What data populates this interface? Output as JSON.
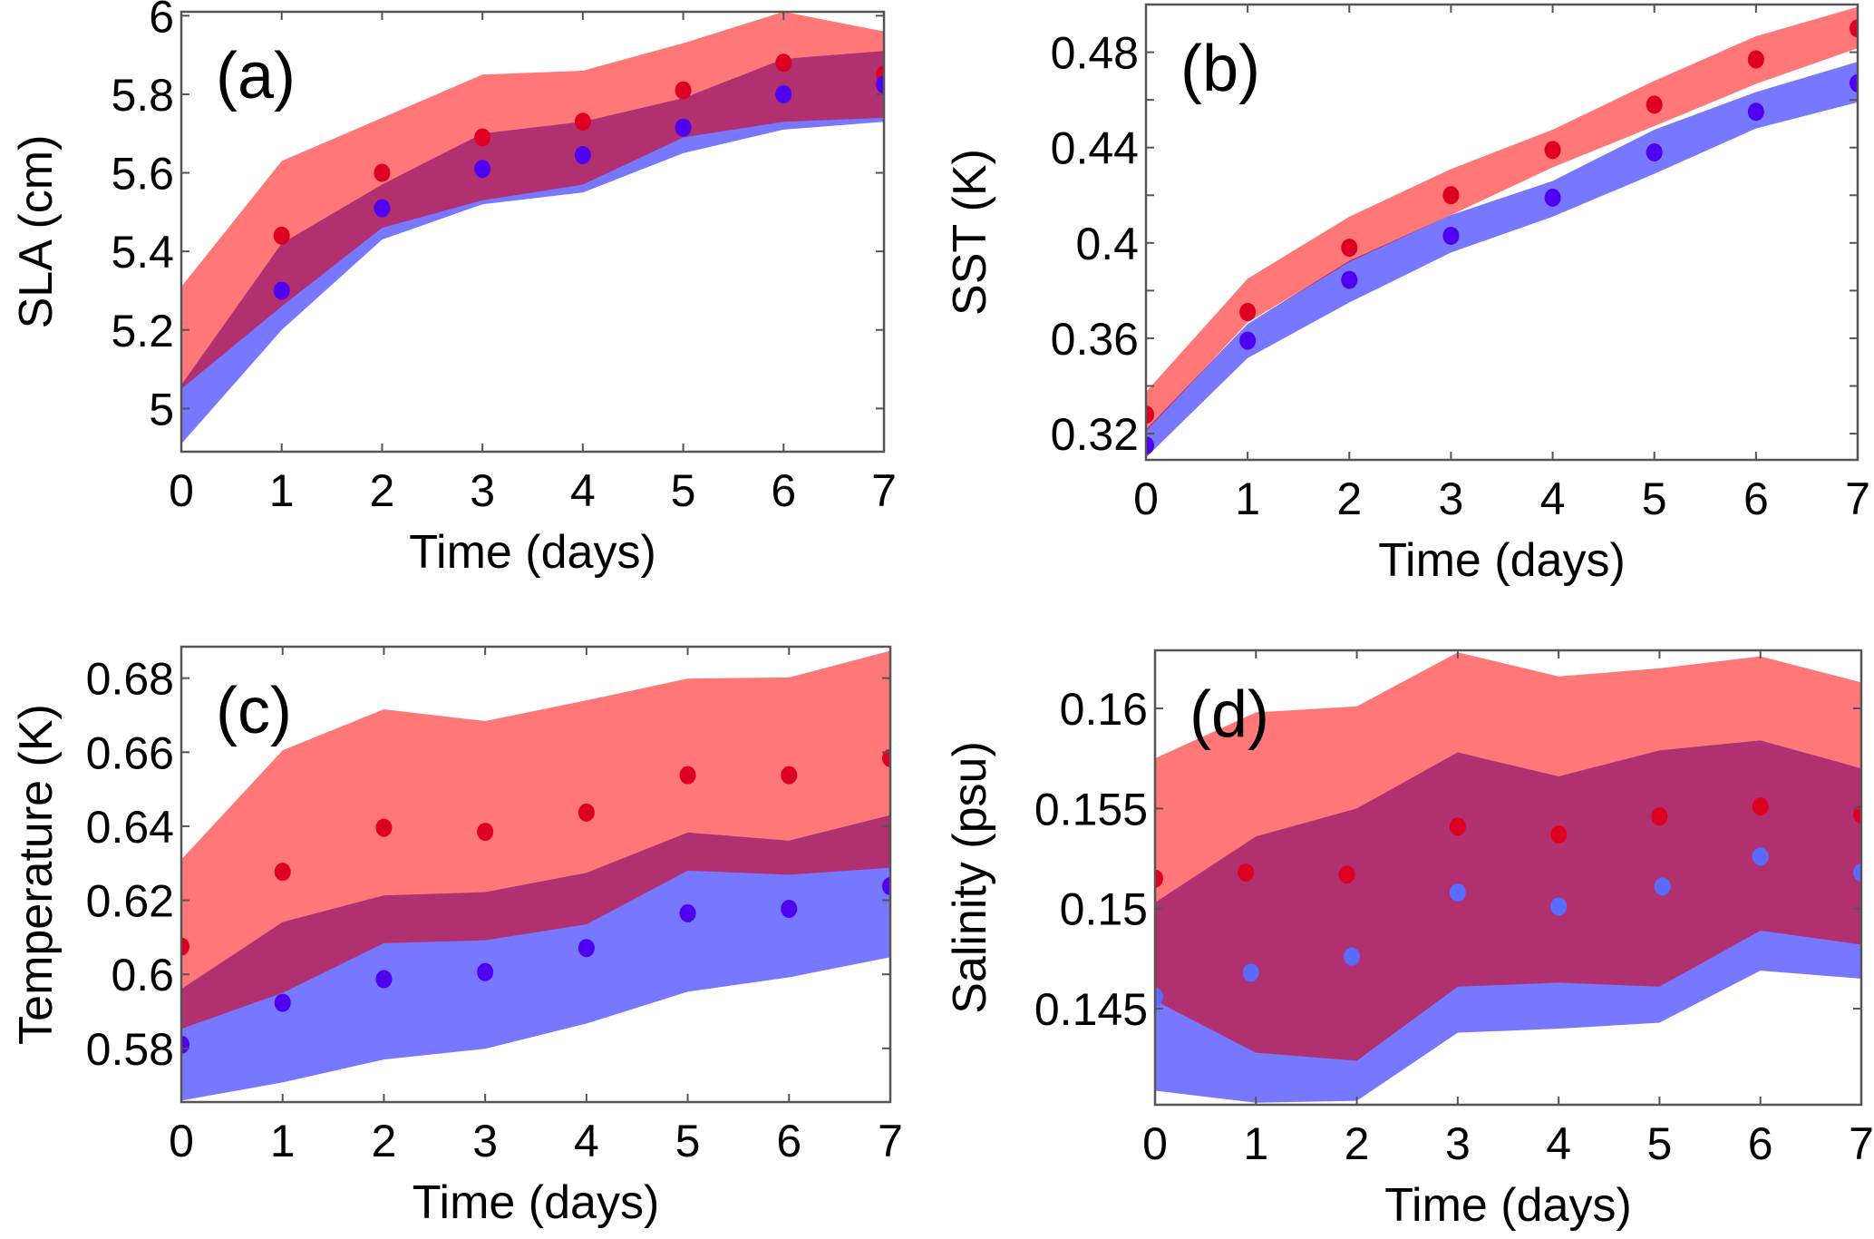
{
  "colors": {
    "red_band": "#ff7777",
    "blue_band": "#7777ff",
    "overlap": "#b03070",
    "red_dots": "#dd0022",
    "blue_dots": "#5000f0",
    "axis": "#555555"
  },
  "chart_data": [
    {
      "type": "area",
      "panel_label": "(a)",
      "xlabel": "Time (days)",
      "ylabel": "SLA (cm)",
      "xlim": [
        0,
        7
      ],
      "ylim": [
        4.89,
        6.01
      ],
      "x_ticks": [
        0,
        1,
        2,
        3,
        4,
        5,
        6,
        7
      ],
      "x_tick_labels": [
        "0",
        "1",
        "2",
        "3",
        "4",
        "5",
        "6",
        "7"
      ],
      "y_ticks": [
        5,
        5.2,
        5.4,
        5.6,
        5.8,
        6
      ],
      "y_tick_labels": [
        "5",
        "5.2",
        "5.4",
        "5.6",
        "5.8",
        "6"
      ],
      "y_minor_ticks": [],
      "x": [
        0,
        1,
        2,
        3,
        4,
        5,
        6,
        7
      ],
      "red_band": {
        "lower": [
          5.05,
          5.26,
          5.46,
          5.53,
          5.57,
          5.69,
          5.73,
          5.74
        ],
        "upper": [
          5.31,
          5.63,
          5.74,
          5.85,
          5.86,
          5.93,
          6.01,
          5.96
        ]
      },
      "blue_band": {
        "lower": [
          4.91,
          5.2,
          5.43,
          5.52,
          5.55,
          5.65,
          5.71,
          5.73
        ],
        "upper": [
          5.06,
          5.42,
          5.57,
          5.7,
          5.73,
          5.79,
          5.89,
          5.91
        ]
      },
      "red_points": {
        "x": [
          1,
          2,
          3,
          4,
          5,
          6,
          7
        ],
        "y": [
          5.44,
          5.6,
          5.69,
          5.73,
          5.81,
          5.88,
          5.85
        ]
      },
      "blue_points": {
        "x": [
          1,
          2,
          3,
          4,
          5,
          6,
          7
        ],
        "y": [
          5.3,
          5.51,
          5.61,
          5.645,
          5.715,
          5.8,
          5.825
        ]
      }
    },
    {
      "type": "area",
      "panel_label": "(b)",
      "xlabel": "Time (days)",
      "ylabel": "SST (K)",
      "xlim": [
        0,
        7
      ],
      "ylim": [
        0.309,
        0.5
      ],
      "x_ticks": [
        0,
        1,
        2,
        3,
        4,
        5,
        6,
        7
      ],
      "x_tick_labels": [
        "0",
        "1",
        "2",
        "3",
        "4",
        "5",
        "6",
        "7"
      ],
      "y_ticks": [
        0.32,
        0.36,
        0.4,
        0.44,
        0.48
      ],
      "y_tick_labels": [
        "0.32",
        "0.36",
        "0.4",
        "0.44",
        "0.48"
      ],
      "y_minor_ticks": [
        0.34,
        0.38,
        0.42,
        0.46
      ],
      "x": [
        0,
        1,
        2,
        3,
        4,
        5,
        6,
        7
      ],
      "red_band": {
        "lower": [
          0.321,
          0.3667,
          0.392,
          0.4117,
          0.4317,
          0.449,
          0.4667,
          0.4817
        ],
        "upper": [
          0.3375,
          0.385,
          0.411,
          0.431,
          0.4475,
          0.468,
          0.4867,
          0.499
        ]
      },
      "blue_band": {
        "lower": [
          0.31,
          0.3517,
          0.375,
          0.396,
          0.411,
          0.429,
          0.448,
          0.459
        ],
        "upper": [
          0.3217,
          0.366,
          0.3925,
          0.4117,
          0.426,
          0.4475,
          0.4633,
          0.476
        ]
      },
      "red_points": {
        "x": [
          0,
          1,
          2,
          3,
          4,
          5,
          6,
          7
        ],
        "y": [
          0.328,
          0.371,
          0.398,
          0.42,
          0.439,
          0.458,
          0.477,
          0.49
        ]
      },
      "blue_points": {
        "x": [
          0,
          1,
          2,
          3,
          4,
          5,
          6,
          7
        ],
        "y": [
          0.315,
          0.359,
          0.3845,
          0.403,
          0.419,
          0.438,
          0.455,
          0.467
        ]
      }
    },
    {
      "type": "area",
      "panel_label": "(c)",
      "xlabel": "Time (days)",
      "ylabel": "Temperature (K)",
      "xlim": [
        0,
        7
      ],
      "ylim": [
        0.5655,
        0.6885
      ],
      "x_ticks": [
        0,
        1,
        2,
        3,
        4,
        5,
        6,
        7
      ],
      "x_tick_labels": [
        "0",
        "1",
        "2",
        "3",
        "4",
        "5",
        "6",
        "7"
      ],
      "y_ticks": [
        0.58,
        0.6,
        0.62,
        0.64,
        0.66,
        0.68
      ],
      "y_tick_labels": [
        "0.58",
        "0.6",
        "0.62",
        "0.64",
        "0.66",
        "0.68"
      ],
      "y_minor_ticks": [],
      "x": [
        0,
        1,
        2,
        3,
        4,
        5,
        6,
        7
      ],
      "red_band": {
        "lower": [
          0.5853,
          0.595,
          0.6084,
          0.6092,
          0.6135,
          0.628,
          0.6269,
          0.6288
        ],
        "upper": [
          0.631,
          0.6605,
          0.6716,
          0.6684,
          0.674,
          0.6799,
          0.6802,
          0.6874
        ]
      },
      "blue_band": {
        "lower": [
          0.5659,
          0.5708,
          0.577,
          0.5799,
          0.5867,
          0.5953,
          0.5992,
          0.6046
        ],
        "upper": [
          0.596,
          0.6141,
          0.6213,
          0.6222,
          0.6274,
          0.6383,
          0.6361,
          0.643
        ]
      },
      "red_points": {
        "x": [
          0,
          1,
          2,
          3,
          4,
          5,
          6,
          7
        ],
        "y": [
          0.6075,
          0.6277,
          0.6396,
          0.6385,
          0.6437,
          0.6538,
          0.6538,
          0.6584
        ]
      },
      "blue_points": {
        "x": [
          0,
          1,
          2,
          3,
          4,
          5,
          6,
          7
        ],
        "y": [
          0.581,
          0.5923,
          0.5987,
          0.6006,
          0.6071,
          0.6165,
          0.6177,
          0.6238
        ]
      }
    },
    {
      "type": "area",
      "panel_label": "(d)",
      "xlabel": "Time (days)",
      "ylabel": "Salinity (psu)",
      "xlim": [
        0,
        7
      ],
      "ylim": [
        0.1402,
        0.1629
      ],
      "x_ticks": [
        0,
        1,
        2,
        3,
        4,
        5,
        6,
        7
      ],
      "x_tick_labels": [
        "0",
        "1",
        "2",
        "3",
        "4",
        "5",
        "6",
        "7"
      ],
      "y_ticks": [
        0.145,
        0.15,
        0.155,
        0.16
      ],
      "y_tick_labels": [
        "0.145",
        "0.15",
        "0.155",
        "0.16"
      ],
      "y_minor_ticks": [],
      "x": [
        0,
        1,
        2,
        3,
        4,
        5,
        6,
        7
      ],
      "red_band": {
        "lower": [
          0.1454,
          0.1428,
          0.1424,
          0.1461,
          0.1463,
          0.1461,
          0.1489,
          0.1482
        ],
        "upper": [
          0.1575,
          0.1598,
          0.1601,
          0.1628,
          0.1616,
          0.162,
          0.1626,
          0.1613
        ]
      },
      "blue_band": {
        "lower": [
          0.1409,
          0.1403,
          0.1404,
          0.1438,
          0.144,
          0.1443,
          0.1469,
          0.1465
        ],
        "upper": [
          0.1503,
          0.1536,
          0.155,
          0.1578,
          0.1566,
          0.1579,
          0.1584,
          0.157
        ]
      },
      "red_points": {
        "x": [
          0,
          0.9,
          1.9,
          3,
          4,
          5,
          6,
          7
        ],
        "y": [
          0.1515,
          0.1518,
          0.1517,
          0.1541,
          0.1537,
          0.1546,
          0.1551,
          0.1547
        ]
      },
      "blue_points": {
        "x": [
          0,
          0.95,
          1.95,
          3,
          4,
          5.03,
          6,
          7
        ],
        "y": [
          0.1456,
          0.1468,
          0.1476,
          0.1508,
          0.1501,
          0.1511,
          0.1526,
          0.1518
        ]
      }
    }
  ]
}
